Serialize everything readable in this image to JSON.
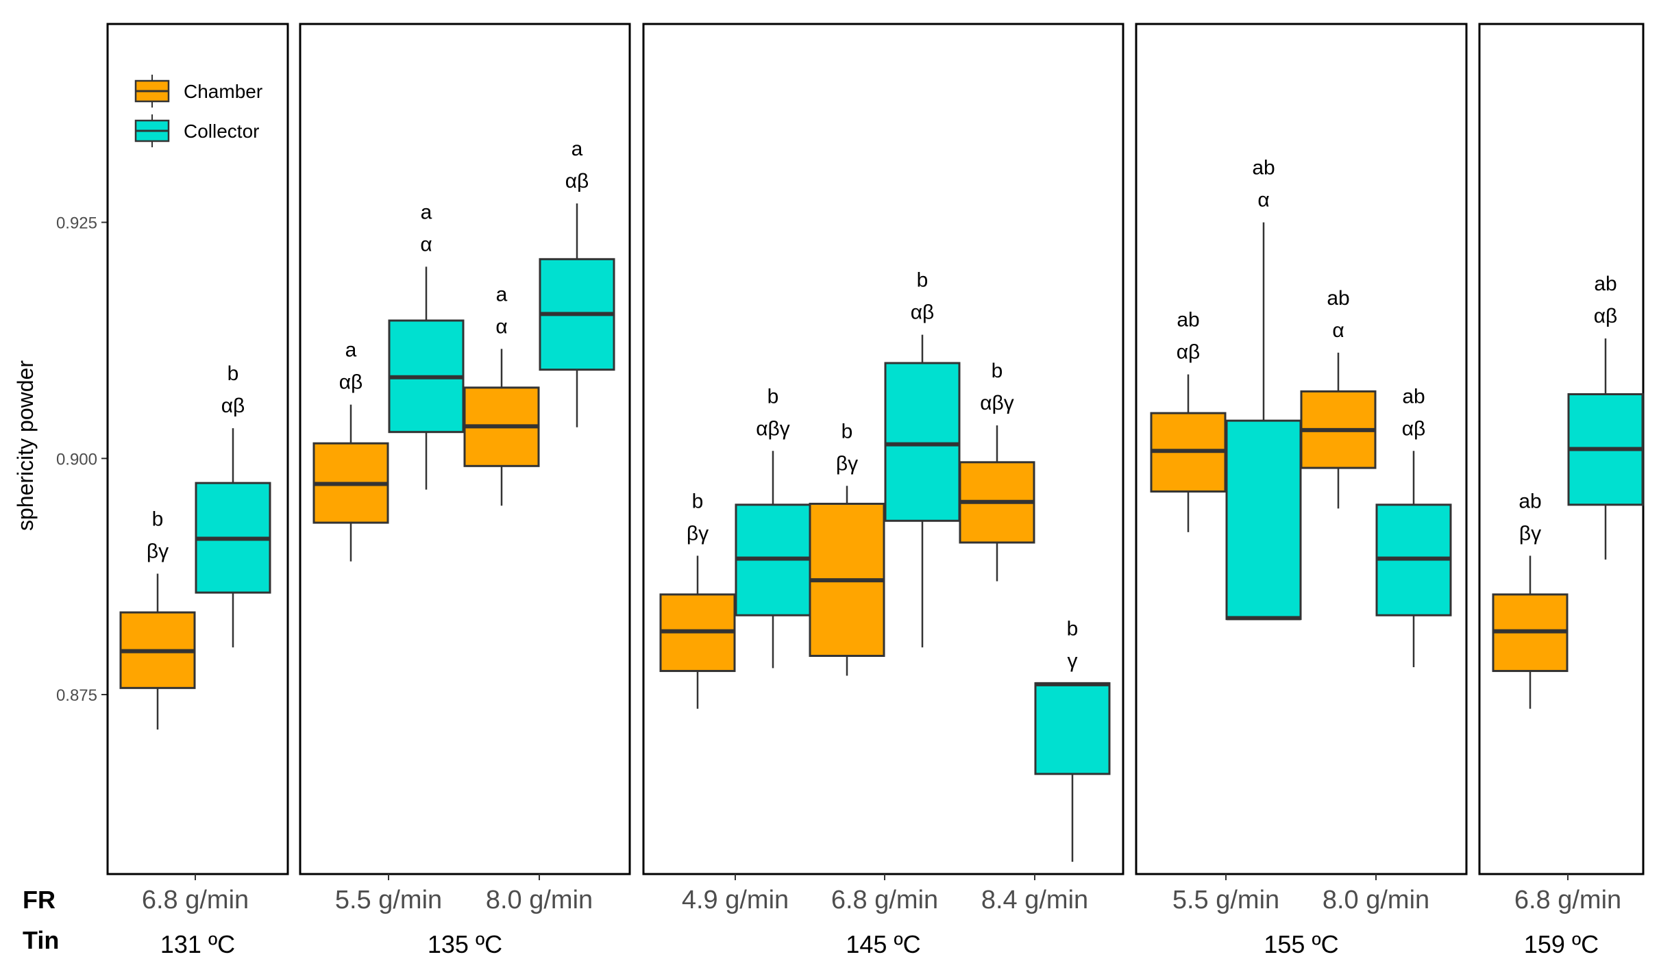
{
  "chart_data": {
    "type": "boxplot",
    "ylabel": "sphericity powder",
    "ylim": [
      0.856,
      0.946
    ],
    "yticks": [
      "0.875",
      "0.900",
      "0.925"
    ],
    "row_titles": {
      "fr": "FR",
      "tin": "Tin"
    },
    "legend": {
      "position": "top-left",
      "items": [
        {
          "name": "Chamber",
          "color": "#FFA500"
        },
        {
          "name": "Collector",
          "color": "#00E0D0"
        }
      ]
    },
    "panels": [
      {
        "tin": "131 ºC",
        "categories": [
          {
            "fr": "6.8 g/min",
            "boxes": [
              {
                "series": "Chamber",
                "min": 0.8713,
                "q1": 0.8757,
                "median": 0.8796,
                "q3": 0.8837,
                "max": 0.8878,
                "letters": [
                  "b",
                  "βγ"
                ]
              },
              {
                "series": "Collector",
                "min": 0.88,
                "q1": 0.8858,
                "median": 0.8915,
                "q3": 0.8974,
                "max": 0.9032,
                "letters": [
                  "b",
                  "αβ"
                ]
              }
            ]
          }
        ]
      },
      {
        "tin": "135 ºC",
        "categories": [
          {
            "fr": "5.5 g/min",
            "boxes": [
              {
                "series": "Chamber",
                "min": 0.8891,
                "q1": 0.8932,
                "median": 0.8973,
                "q3": 0.9016,
                "max": 0.9057,
                "letters": [
                  "a",
                  "αβ"
                ]
              },
              {
                "series": "Collector",
                "min": 0.8967,
                "q1": 0.9028,
                "median": 0.9086,
                "q3": 0.9146,
                "max": 0.9203,
                "letters": [
                  "a",
                  "α"
                ]
              }
            ]
          },
          {
            "fr": "8.0 g/min",
            "boxes": [
              {
                "series": "Chamber",
                "min": 0.895,
                "q1": 0.8992,
                "median": 0.9034,
                "q3": 0.9075,
                "max": 0.9116,
                "letters": [
                  "a",
                  "α"
                ]
              },
              {
                "series": "Collector",
                "min": 0.9033,
                "q1": 0.9094,
                "median": 0.9153,
                "q3": 0.9211,
                "max": 0.927,
                "letters": [
                  "a",
                  "αβ"
                ]
              }
            ]
          }
        ]
      },
      {
        "tin": "145 ºC",
        "categories": [
          {
            "fr": "4.9 g/min",
            "boxes": [
              {
                "series": "Chamber",
                "min": 0.8735,
                "q1": 0.8775,
                "median": 0.8817,
                "q3": 0.8856,
                "max": 0.8897,
                "letters": [
                  "b",
                  "βγ"
                ]
              },
              {
                "series": "Collector",
                "min": 0.8778,
                "q1": 0.8834,
                "median": 0.8894,
                "q3": 0.8951,
                "max": 0.9008,
                "letters": [
                  "b",
                  "αβγ"
                ]
              }
            ]
          },
          {
            "fr": "6.8 g/min",
            "boxes": [
              {
                "series": "Chamber",
                "min": 0.877,
                "q1": 0.8791,
                "median": 0.8871,
                "q3": 0.8952,
                "max": 0.8971,
                "letters": [
                  "b",
                  "βγ"
                ]
              },
              {
                "series": "Collector",
                "min": 0.88,
                "q1": 0.8934,
                "median": 0.9015,
                "q3": 0.9101,
                "max": 0.9131,
                "letters": [
                  "b",
                  "αβ"
                ]
              }
            ]
          },
          {
            "fr": "8.4 g/min",
            "boxes": [
              {
                "series": "Chamber",
                "min": 0.887,
                "q1": 0.8911,
                "median": 0.8954,
                "q3": 0.8996,
                "max": 0.9035,
                "letters": [
                  "b",
                  "αβγ"
                ]
              },
              {
                "series": "Collector",
                "min": 0.8573,
                "q1": 0.8666,
                "median": 0.8761,
                "q3": 0.8762,
                "max": 0.8762,
                "letters": [
                  "b",
                  "γ"
                ]
              }
            ]
          }
        ]
      },
      {
        "tin": "155 ºC",
        "categories": [
          {
            "fr": "5.5 g/min",
            "boxes": [
              {
                "series": "Chamber",
                "min": 0.8922,
                "q1": 0.8965,
                "median": 0.9008,
                "q3": 0.9048,
                "max": 0.9089,
                "letters": [
                  "ab",
                  "αβ"
                ]
              },
              {
                "series": "Collector",
                "min": 0.883,
                "q1": 0.883,
                "median": 0.8831,
                "q3": 0.904,
                "max": 0.925,
                "letters": [
                  "ab",
                  "α"
                ]
              }
            ]
          },
          {
            "fr": "8.0 g/min",
            "boxes": [
              {
                "series": "Chamber",
                "min": 0.8947,
                "q1": 0.899,
                "median": 0.903,
                "q3": 0.9071,
                "max": 0.9112,
                "letters": [
                  "ab",
                  "α"
                ]
              },
              {
                "series": "Collector",
                "min": 0.8779,
                "q1": 0.8834,
                "median": 0.8894,
                "q3": 0.8951,
                "max": 0.9008,
                "letters": [
                  "ab",
                  "αβ"
                ]
              }
            ]
          }
        ]
      },
      {
        "tin": "159 ºC",
        "categories": [
          {
            "fr": "6.8 g/min",
            "boxes": [
              {
                "series": "Chamber",
                "min": 0.8735,
                "q1": 0.8775,
                "median": 0.8817,
                "q3": 0.8856,
                "max": 0.8897,
                "letters": [
                  "ab",
                  "βγ"
                ]
              },
              {
                "series": "Collector",
                "min": 0.8893,
                "q1": 0.8951,
                "median": 0.901,
                "q3": 0.9068,
                "max": 0.9127,
                "letters": [
                  "ab",
                  "αβ"
                ]
              }
            ]
          }
        ]
      }
    ]
  }
}
